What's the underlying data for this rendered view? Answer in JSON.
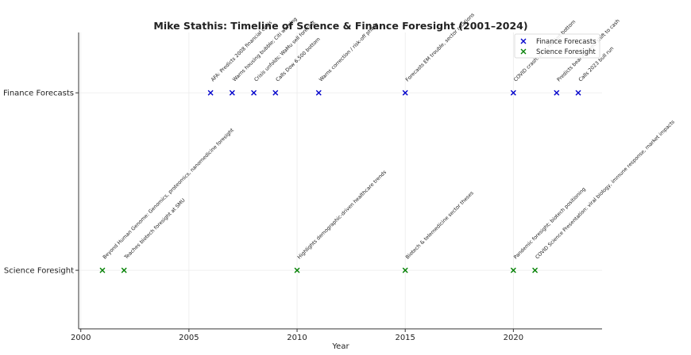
{
  "chart_data": {
    "type": "scatter",
    "title": "Mike Stathis: Timeline of Science & Finance Foresight (2001–2024)",
    "x_label": "Year",
    "xlim": [
      1999.9,
      2024.1
    ],
    "xticks": [
      2000,
      2005,
      2010,
      2015,
      2020
    ],
    "ylim": [
      -0.33,
      1.34
    ],
    "yticks": [
      {
        "value": 0,
        "label": "Science Foresight"
      },
      {
        "value": 1,
        "label": "Finance Forecasts"
      }
    ],
    "grid": true,
    "legend": "upper right",
    "series": [
      {
        "name": "Finance Forecasts",
        "color": "#0000cc",
        "marker": "x",
        "x": [
          2006,
          2007,
          2008,
          2009,
          2011,
          2015,
          2020,
          2022,
          2023
        ],
        "values": [
          1,
          1,
          1,
          1,
          1,
          1,
          1,
          1,
          1
        ],
        "annotations": [
          "AFA: Predicts 2008 financial crisis",
          "Warns housing bubble; Citi warning",
          "Crisis unfolds; WaMu sell forecast",
          "Calls Dow 6,500 bottom",
          "Warns correction / risk-off phase",
          "Forecasts EM trouble, sector rotations",
          "COVID crash: calls market bottom",
          "Predicts bear market; shift to cash",
          "Calls 2023 bull run"
        ]
      },
      {
        "name": "Science Foresight",
        "color": "#008000",
        "marker": "x",
        "x": [
          2001,
          2002,
          2010,
          2015,
          2020,
          2021
        ],
        "values": [
          0,
          0,
          0,
          0,
          0,
          0
        ],
        "annotations": [
          "Beyond Human Genome: Genomics, proteomics, nanomedicine foresight",
          "Teaches biotech foresight at SMU",
          "Highlights demographic-driven healthcare trends",
          "Biotech & telemedicine sector theses",
          "Pandemic foresight; biotech positioning",
          "COVID Science Presentation: viral biology, immune response, market impacts"
        ]
      }
    ]
  }
}
